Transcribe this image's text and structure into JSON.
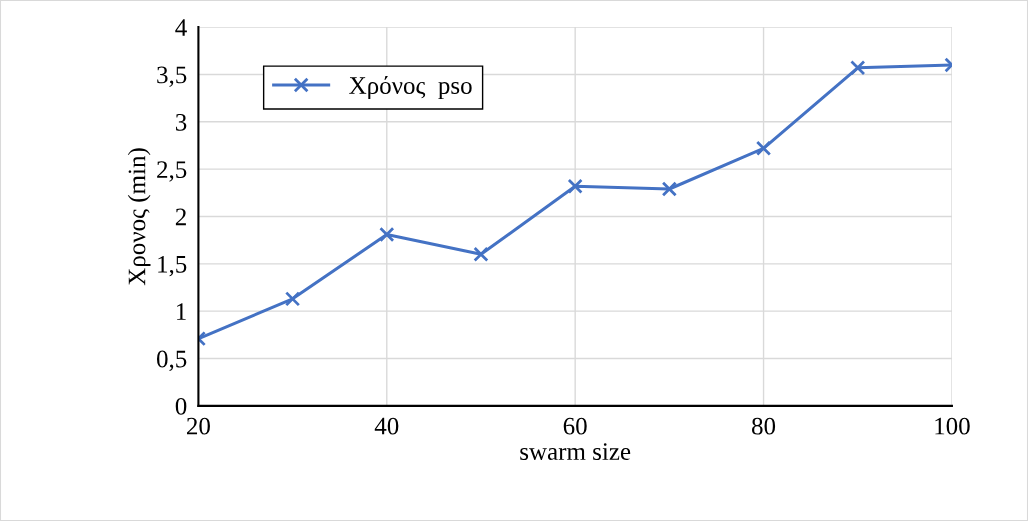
{
  "chart_data": {
    "type": "line",
    "xlabel": "swarm size",
    "ylabel": "Χρονος (min)",
    "x": [
      20,
      30,
      40,
      50,
      60,
      70,
      80,
      90,
      100
    ],
    "series": [
      {
        "name": "Χρόνος  pso",
        "color": "#4472c4",
        "values": [
          0.71,
          1.13,
          1.81,
          1.6,
          2.32,
          2.29,
          2.72,
          3.57,
          3.6
        ]
      }
    ],
    "xlim": [
      20,
      100
    ],
    "xticks": [
      20,
      40,
      60,
      80,
      100
    ],
    "ylim": [
      0,
      4
    ],
    "yticks": [
      0,
      {
        "value": 0.5,
        "label": "0,5"
      },
      1,
      {
        "value": 1.5,
        "label": "1,5"
      },
      2,
      {
        "value": 2.5,
        "label": "2,5"
      },
      3,
      {
        "value": 3.5,
        "label": "3,5"
      },
      4
    ],
    "grid": true,
    "legend": "top left",
    "marker": "cross",
    "line_style": "solid"
  }
}
